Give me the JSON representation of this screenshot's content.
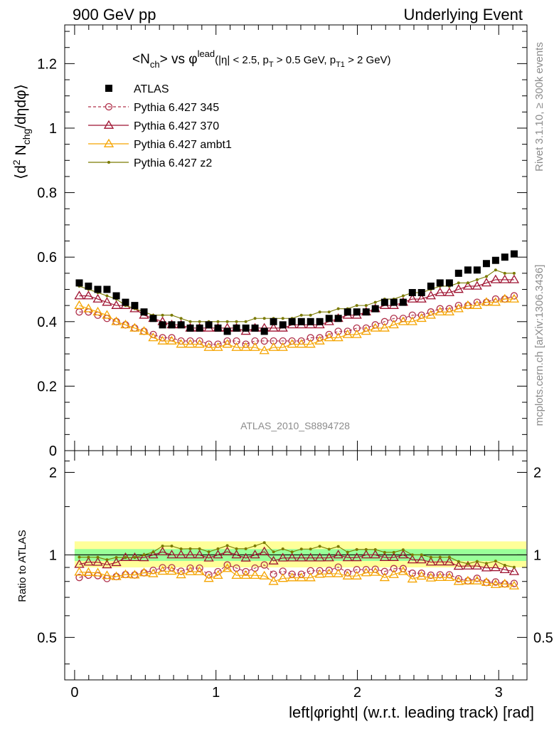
{
  "header": {
    "left": "900 GeV pp",
    "right": "Underlying Event"
  },
  "side_labels": {
    "rivet": "Rivet 3.1.10, ≥ 300k events",
    "mcplots": "mcplots.cern.ch [arXiv:1306.3436]"
  },
  "watermark": "ATLAS_2010_S8894728",
  "title": {
    "nch": "N",
    "nch_sub": "ch",
    "vs": "vs",
    "phi": "φ",
    "phi_sup": "lead",
    "cuts": "(|η| < 2.5, p",
    "cuts_pt_sub": "T",
    "cuts_mid": " > 0.5 GeV, p",
    "cuts_pt1_sub": "T1",
    "cuts_end": " > 2 GeV)"
  },
  "ylabel": {
    "main": "⟨d",
    "sup": "2",
    "mid": " N",
    "sub": "chg",
    "end": "/dηdφ⟩"
  },
  "ratio_ylabel": "Ratio to ATLAS",
  "xlabel": "left|φright| (w.r.t. leading track) [rad]",
  "colors": {
    "atlas": "#000000",
    "p345": "#b0304a",
    "p370": "#9e1230",
    "ambt1": "#f5a400",
    "z2": "#7a7a00",
    "band_yellow": "#ffff99",
    "band_green": "#99ff99"
  },
  "chart_data": {
    "type": "scatter",
    "x": [
      0.033,
      0.098,
      0.164,
      0.229,
      0.295,
      0.36,
      0.425,
      0.491,
      0.556,
      0.622,
      0.687,
      0.753,
      0.818,
      0.884,
      0.949,
      1.014,
      1.08,
      1.145,
      1.211,
      1.276,
      1.342,
      1.407,
      1.473,
      1.538,
      1.604,
      1.669,
      1.734,
      1.8,
      1.865,
      1.931,
      1.996,
      2.062,
      2.127,
      2.193,
      2.258,
      2.324,
      2.389,
      2.454,
      2.52,
      2.585,
      2.651,
      2.716,
      2.782,
      2.847,
      2.913,
      2.978,
      3.043,
      3.109
    ],
    "series": [
      {
        "name": "ATLAS",
        "values": [
          0.52,
          0.51,
          0.5,
          0.5,
          0.48,
          0.46,
          0.45,
          0.43,
          0.41,
          0.39,
          0.39,
          0.39,
          0.38,
          0.38,
          0.39,
          0.38,
          0.37,
          0.38,
          0.38,
          0.38,
          0.37,
          0.4,
          0.39,
          0.4,
          0.4,
          0.4,
          0.4,
          0.41,
          0.41,
          0.43,
          0.43,
          0.43,
          0.44,
          0.46,
          0.46,
          0.46,
          0.49,
          0.49,
          0.51,
          0.52,
          0.52,
          0.55,
          0.56,
          0.56,
          0.58,
          0.59,
          0.6,
          0.61
        ]
      },
      {
        "name": "Pythia 6.427 345",
        "values": [
          0.43,
          0.43,
          0.42,
          0.41,
          0.4,
          0.39,
          0.38,
          0.37,
          0.36,
          0.35,
          0.35,
          0.34,
          0.34,
          0.34,
          0.33,
          0.33,
          0.34,
          0.34,
          0.33,
          0.34,
          0.34,
          0.34,
          0.34,
          0.34,
          0.34,
          0.35,
          0.35,
          0.36,
          0.37,
          0.37,
          0.38,
          0.38,
          0.39,
          0.4,
          0.41,
          0.41,
          0.42,
          0.42,
          0.43,
          0.44,
          0.44,
          0.45,
          0.45,
          0.46,
          0.46,
          0.47,
          0.47,
          0.48
        ]
      },
      {
        "name": "Pythia 6.427 370",
        "values": [
          0.48,
          0.48,
          0.47,
          0.46,
          0.45,
          0.45,
          0.44,
          0.42,
          0.41,
          0.4,
          0.39,
          0.39,
          0.38,
          0.38,
          0.38,
          0.38,
          0.38,
          0.38,
          0.37,
          0.38,
          0.38,
          0.38,
          0.38,
          0.39,
          0.39,
          0.39,
          0.39,
          0.4,
          0.41,
          0.42,
          0.42,
          0.43,
          0.44,
          0.45,
          0.45,
          0.46,
          0.47,
          0.47,
          0.48,
          0.49,
          0.49,
          0.5,
          0.51,
          0.51,
          0.52,
          0.53,
          0.53,
          0.53
        ]
      },
      {
        "name": "Pythia 6.427 ambt1",
        "values": [
          0.45,
          0.44,
          0.43,
          0.42,
          0.4,
          0.39,
          0.38,
          0.37,
          0.35,
          0.34,
          0.34,
          0.33,
          0.33,
          0.33,
          0.32,
          0.32,
          0.33,
          0.32,
          0.32,
          0.32,
          0.31,
          0.32,
          0.32,
          0.33,
          0.33,
          0.33,
          0.34,
          0.35,
          0.35,
          0.36,
          0.36,
          0.37,
          0.38,
          0.38,
          0.39,
          0.4,
          0.4,
          0.41,
          0.42,
          0.43,
          0.43,
          0.44,
          0.45,
          0.45,
          0.46,
          0.46,
          0.47,
          0.47
        ]
      },
      {
        "name": "Pythia 6.427 z2",
        "values": [
          0.51,
          0.5,
          0.49,
          0.48,
          0.47,
          0.45,
          0.44,
          0.43,
          0.42,
          0.42,
          0.42,
          0.41,
          0.4,
          0.4,
          0.4,
          0.4,
          0.4,
          0.4,
          0.4,
          0.41,
          0.41,
          0.41,
          0.41,
          0.41,
          0.42,
          0.42,
          0.43,
          0.43,
          0.44,
          0.44,
          0.45,
          0.45,
          0.46,
          0.47,
          0.47,
          0.48,
          0.49,
          0.49,
          0.5,
          0.51,
          0.51,
          0.52,
          0.52,
          0.53,
          0.54,
          0.56,
          0.55,
          0.55
        ]
      }
    ],
    "main_yticks": [
      0,
      0.2,
      0.4,
      0.6,
      0.8,
      1,
      1.2
    ],
    "main_ylim": [
      0,
      1.32
    ],
    "ratio_yticks": [
      0.5,
      1,
      2
    ],
    "ratio_ylim": [
      0.35,
      2.4
    ],
    "xticks": [
      0,
      1,
      2,
      3
    ],
    "xlim": [
      -0.07,
      3.2
    ],
    "bands": {
      "yellow": [
        0.9,
        1.12
      ],
      "green": [
        0.95,
        1.05
      ]
    }
  }
}
